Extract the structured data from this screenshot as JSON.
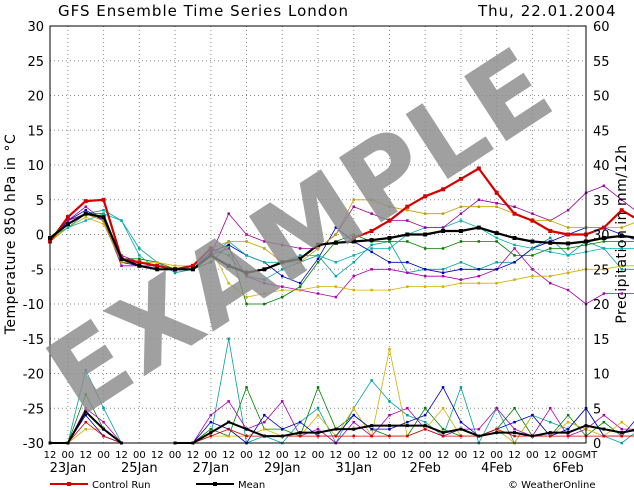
{
  "header": {
    "title": "GFS Ensemble Time Series London",
    "date": "Thu, 22.01.2004"
  },
  "watermark": "EXAMPLE",
  "credit": "© WeatherOnline",
  "chart_data": {
    "type": "line",
    "ylabel_left": "Temperature 850 hPa in °C",
    "ylabel_right": "Precipitation in mm/12h",
    "ylim_left": [
      -30,
      30
    ],
    "ylim_right": [
      0,
      60
    ],
    "yticks_left": [
      "30",
      "25",
      "20",
      "15",
      "10",
      "5",
      "0",
      "-5",
      "-10",
      "-15",
      "-20",
      "-25",
      "-30"
    ],
    "yticks_right": [
      "60",
      "55",
      "50",
      "45",
      "40",
      "35",
      "30",
      "25",
      "20",
      "15",
      "10",
      "5",
      "0"
    ],
    "x_hour_labels": [
      "12",
      "00",
      "12",
      "00",
      "12",
      "00",
      "12",
      "00",
      "12",
      "00",
      "12",
      "00",
      "12",
      "00",
      "12",
      "00",
      "12",
      "00",
      "12",
      "00",
      "12",
      "00",
      "12",
      "00",
      "12",
      "00",
      "12",
      "00",
      "12",
      "00",
      "GMT"
    ],
    "x_date_labels": [
      "23Jan",
      "25Jan",
      "27Jan",
      "29Jan",
      "31Jan",
      "2Feb",
      "4Feb",
      "6Feb"
    ],
    "grid": true,
    "series": [
      {
        "name": "Control Run",
        "color": "#d40000",
        "values": [
          -1,
          2.5,
          4.8,
          5,
          -3.5,
          -4,
          -4.5,
          -5,
          -4.5,
          -2,
          null,
          null,
          null,
          null,
          null,
          null,
          null,
          -0.5,
          0.5,
          2,
          4,
          5.5,
          6.5,
          8,
          9.5,
          6,
          3,
          2,
          0.5,
          0,
          0,
          1,
          3.5,
          2,
          2,
          0
        ]
      },
      {
        "name": "Mean",
        "color": "#000000",
        "values": [
          -0.5,
          1.5,
          3,
          2.5,
          -3.5,
          -4.5,
          -5,
          -5,
          -5,
          -3,
          -4.5,
          -5.5,
          -5,
          -4,
          -3.5,
          -1.5,
          -1.2,
          -1,
          -0.8,
          -0.5,
          0,
          0,
          0.5,
          0.5,
          1,
          0.2,
          -0.5,
          -1,
          -1.2,
          -1.3,
          -1,
          -0.5,
          -0.2,
          -0.5,
          -1,
          -2
        ]
      },
      {
        "name": "",
        "color": "#00a0a0",
        "values": [
          -1,
          1,
          3,
          3.5,
          2,
          -2,
          -4,
          -5.5,
          -5,
          -2,
          -3,
          -6,
          -6.5,
          -5,
          -4,
          -3,
          -6,
          -4,
          -1.5,
          -1,
          -5.5,
          -5,
          -5,
          -4,
          -5,
          -4,
          -4,
          -2,
          -0.5,
          -3,
          -1,
          -2,
          -5,
          -5,
          -4,
          -3
        ]
      },
      {
        "name": "",
        "color": "#b000b0",
        "values": [
          -1,
          2,
          4,
          2,
          -4.5,
          -4.5,
          -4.5,
          -5,
          -5,
          -3,
          -2,
          -6,
          -7,
          -7.5,
          -8,
          -8.5,
          -9,
          -6,
          -5,
          -5,
          -5.5,
          -6,
          -6,
          -6.5,
          -6,
          -5,
          -2,
          -5,
          -7,
          -8,
          -10,
          -8.5,
          -8.5,
          -8.5,
          -8.5,
          -10
        ]
      },
      {
        "name": "",
        "color": "#008000",
        "values": [
          -1,
          1.5,
          3,
          3,
          -3.5,
          -3.5,
          -4,
          -5,
          -5,
          -4,
          -1.5,
          -10,
          -10,
          -9,
          -7.5,
          -4,
          -1,
          0,
          -1,
          -1,
          -1,
          -2,
          -2,
          -1,
          -1,
          -1,
          -3,
          -3,
          -2,
          -2,
          -1.5,
          -1,
          -1,
          -1,
          -1,
          -2
        ]
      },
      {
        "name": "",
        "color": "#d4b000",
        "values": [
          -1,
          1,
          2.5,
          1.5,
          -4,
          -4,
          -4,
          -4.5,
          -4.5,
          -2,
          -7,
          -9,
          -8.5,
          -8,
          -8,
          -7.5,
          -7.5,
          -8,
          -8,
          -8,
          -7.5,
          -7.5,
          -7.5,
          -7,
          -7,
          -7,
          -6.5,
          -6,
          -6,
          -5.5,
          -5,
          -5,
          -4.5,
          -4.5,
          -3,
          -2
        ]
      },
      {
        "name": "",
        "color": "#0000c0",
        "values": [
          -1,
          2,
          3.5,
          2,
          -4,
          -4.5,
          -5,
          -5,
          -5,
          -2.5,
          -1.5,
          -3,
          -4,
          -6,
          -7,
          -3.5,
          1,
          -1,
          -2.5,
          -4,
          -4,
          -5,
          -5.5,
          -5,
          -5,
          -5,
          -4,
          -2,
          -1,
          0,
          1,
          1,
          0,
          -1,
          -1,
          -2
        ]
      },
      {
        "name": "",
        "color": "#00b0b0",
        "values": [
          -0.5,
          1,
          2,
          3,
          2,
          -3,
          -5,
          -5,
          -5,
          -3,
          -1,
          -3,
          -4,
          -4,
          -3,
          -3,
          -4,
          -3,
          -2,
          -2,
          0,
          1,
          1,
          2,
          1,
          -0.5,
          -1.5,
          -2,
          -2.5,
          -3,
          -2.5,
          -2,
          -2,
          -2,
          -1,
          -1
        ]
      },
      {
        "name": "",
        "color": "#a000a0",
        "values": [
          -0.5,
          2,
          3,
          2,
          -3,
          -4,
          -4.5,
          -5,
          -5,
          -3,
          3,
          0,
          -1,
          -1.5,
          -2,
          -2,
          0,
          4,
          3,
          2,
          2,
          1,
          1,
          3,
          5,
          4.5,
          4,
          3,
          2,
          3.5,
          6,
          7,
          5,
          3,
          -1,
          -1
        ]
      },
      {
        "name": "",
        "color": "#c0a000",
        "values": [
          -1,
          1.5,
          3,
          2,
          -4,
          -4,
          -4.5,
          -5,
          -4.5,
          -2,
          -1,
          -1,
          -2,
          -4,
          -4,
          -2,
          0,
          5,
          5,
          4,
          3.5,
          3,
          3,
          4,
          4,
          4,
          3,
          2,
          2,
          1,
          1,
          1,
          1,
          2,
          2,
          2
        ]
      }
    ],
    "precip_series": [
      {
        "color": "#00a0a0",
        "values": [
          0,
          0,
          10.5,
          5,
          0,
          null,
          null,
          0,
          0,
          1,
          15,
          0,
          1,
          0,
          3,
          5,
          0,
          5,
          9,
          6,
          4,
          3,
          1,
          8,
          0,
          5,
          0,
          4,
          3,
          2,
          5,
          1,
          0,
          2,
          3,
          1
        ]
      },
      {
        "color": "#b000b0",
        "values": [
          0,
          0,
          5,
          3,
          0,
          null,
          null,
          0,
          0,
          4,
          6,
          2,
          3,
          6,
          1,
          2,
          0,
          3,
          1,
          4,
          5,
          2,
          1,
          2,
          2,
          5,
          2,
          1,
          5,
          1,
          2,
          4,
          2,
          2,
          4,
          2
        ]
      },
      {
        "color": "#008000",
        "values": [
          0,
          0,
          7,
          2,
          0,
          null,
          null,
          0,
          0,
          2,
          1,
          8,
          2,
          2,
          1,
          8,
          2,
          4,
          2,
          1,
          1,
          5,
          2,
          1,
          1,
          2,
          5,
          1,
          1,
          4,
          1,
          3,
          1,
          1,
          2,
          1
        ]
      },
      {
        "color": "#d4b000",
        "values": [
          0,
          0,
          2,
          2,
          0,
          null,
          null,
          0,
          0,
          1,
          1,
          1,
          2,
          1,
          1,
          4,
          1,
          5,
          1,
          13.5,
          1,
          2,
          5,
          1,
          1,
          2,
          0,
          4,
          1,
          3,
          2,
          1,
          3,
          1,
          7,
          1
        ]
      },
      {
        "color": "#0000c0",
        "values": [
          0,
          0,
          4,
          1,
          0,
          null,
          null,
          0,
          0,
          3,
          2,
          0,
          4,
          2,
          3,
          1,
          1,
          4,
          2,
          2,
          3,
          4,
          8,
          3,
          1,
          2,
          3,
          4,
          1,
          2,
          5,
          1,
          1,
          4,
          1,
          2
        ]
      },
      {
        "color": "#d40000",
        "values": [
          0,
          0,
          3,
          1,
          0,
          null,
          null,
          0,
          0,
          1,
          2,
          1,
          1,
          1,
          1,
          1,
          1,
          1,
          1,
          1,
          1,
          2,
          1,
          1,
          1,
          2,
          1,
          1,
          1,
          1,
          1,
          1,
          1,
          1,
          1,
          1
        ]
      },
      {
        "color": "#000000",
        "values": [
          0,
          0,
          4.5,
          2,
          0,
          null,
          null,
          0,
          0,
          1.5,
          3,
          2,
          1,
          1,
          1.5,
          1.5,
          2,
          2,
          2.5,
          2.5,
          2.5,
          2.5,
          1.5,
          2,
          1,
          1.5,
          1.5,
          1,
          1.5,
          1.5,
          2.5,
          2,
          1.5,
          2,
          2,
          1.5
        ]
      }
    ]
  },
  "legend": {
    "control_label": "Control Run",
    "mean_label": "Mean"
  },
  "colors": {
    "control": "#d40000",
    "mean": "#000000",
    "grid": "#8a8a8a"
  }
}
